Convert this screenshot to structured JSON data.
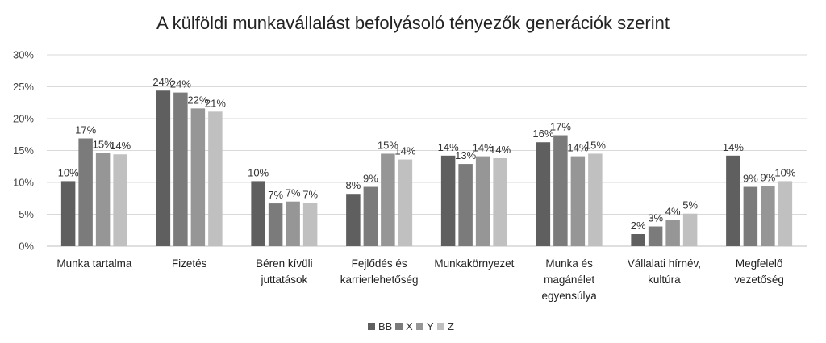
{
  "chart_data": {
    "type": "bar",
    "title": "A külföldi munkavállalást befolyásoló tényezők generációk szerint",
    "categories": [
      [
        "Munka tartalma"
      ],
      [
        "Fizetés"
      ],
      [
        "Béren kívüli",
        "juttatások"
      ],
      [
        "Fejlődés és",
        "karrierlehetőség"
      ],
      [
        "Munkakörnyezet"
      ],
      [
        "Munka és",
        "magánélet",
        "egyensúlya"
      ],
      [
        "Vállalati hírnév,",
        "kultúra"
      ],
      [
        "Megfelelő",
        "vezetőség"
      ]
    ],
    "series": [
      {
        "name": "BB",
        "color": "#5f5f5f",
        "values": [
          10.2,
          24.4,
          10.2,
          8.2,
          14.2,
          16.3,
          1.9,
          14.2
        ],
        "labels": [
          "10%",
          "24%",
          "10%",
          "8%",
          "14%",
          "16%",
          "2%",
          "14%"
        ]
      },
      {
        "name": "X",
        "color": "#7b7b7b",
        "values": [
          16.9,
          24.1,
          6.7,
          9.3,
          12.9,
          17.4,
          3.1,
          9.3
        ],
        "labels": [
          "17%",
          "24%",
          "7%",
          "9%",
          "13%",
          "17%",
          "3%",
          "9%"
        ]
      },
      {
        "name": "Y",
        "color": "#969696",
        "values": [
          14.6,
          21.6,
          7.0,
          14.5,
          14.1,
          14.1,
          4.1,
          9.4
        ],
        "labels": [
          "15%",
          "22%",
          "7%",
          "15%",
          "14%",
          "14%",
          "4%",
          "9%"
        ]
      },
      {
        "name": "Z",
        "color": "#c0c0c0",
        "values": [
          14.4,
          21.1,
          6.8,
          13.6,
          13.8,
          14.5,
          5.1,
          10.2
        ],
        "labels": [
          "14%",
          "21%",
          "7%",
          "14%",
          "14%",
          "15%",
          "5%",
          "10%"
        ]
      }
    ],
    "ylim": [
      0,
      30
    ],
    "yticks": [
      0,
      5,
      10,
      15,
      20,
      25,
      30
    ],
    "ytick_labels": [
      "0%",
      "5%",
      "10%",
      "15%",
      "20%",
      "25%",
      "30%"
    ],
    "grid": true,
    "legend_position": "bottom"
  }
}
